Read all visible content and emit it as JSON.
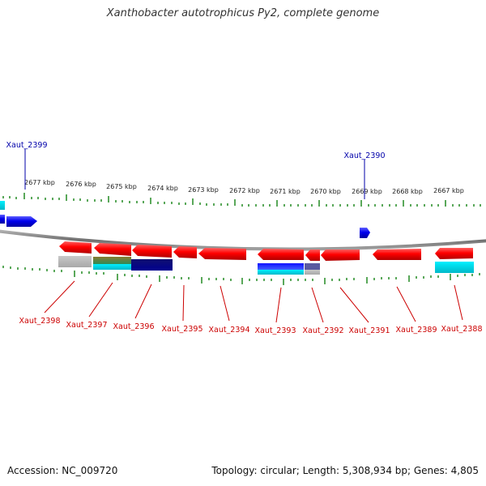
{
  "title": "Xanthobacter autotrophicus Py2, complete genome",
  "footer": {
    "accession": "Accession: NC_009720",
    "topology": "Topology: circular; Length: 5,308,934 bp; Genes: 4,805"
  },
  "colors": {
    "forward_gene": "#0000ee",
    "reverse_gene": "#ff0000",
    "reverse_label": "#cc0000",
    "forward_label": "#0000aa",
    "backbone": "#888888",
    "ticks": "#228b22",
    "cyan_feature": "#00d8e8",
    "navy_feature": "#00008b",
    "grey_feature": "#b8b8b8",
    "olive_feature": "#6b8e23"
  },
  "kbp_labels": [
    "2677 kbp",
    "2676 kbp",
    "2675 kbp",
    "2674 kbp",
    "2673 kbp",
    "2672 kbp",
    "2671 kbp",
    "2670 kbp",
    "2669 kbp",
    "2668 kbp",
    "2667 kbp"
  ],
  "forward_genes": [
    "Xaut_2399",
    "Xaut_2390"
  ],
  "reverse_genes": [
    "Xaut_2398",
    "Xaut_2397",
    "Xaut_2396",
    "Xaut_2395",
    "Xaut_2394",
    "Xaut_2393",
    "Xaut_2392",
    "Xaut_2391",
    "Xaut_2389",
    "Xaut_2388"
  ]
}
